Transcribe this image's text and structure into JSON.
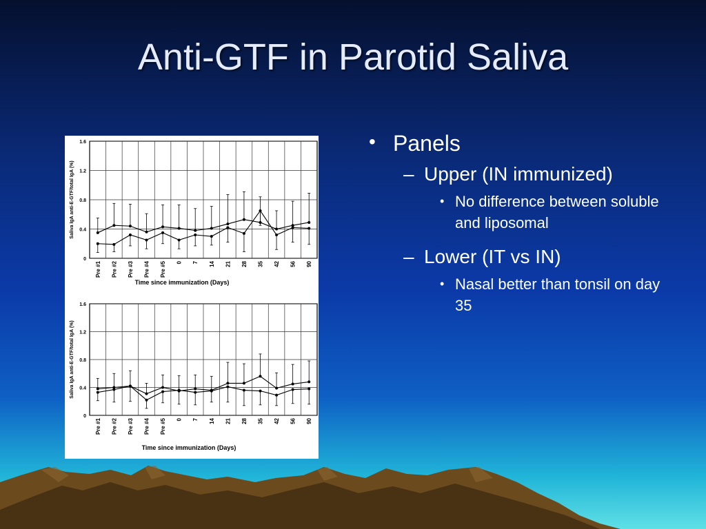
{
  "slide": {
    "title": "Anti-GTF in Parotid Saliva",
    "bullets": {
      "level1": "Panels",
      "upper": "Upper (IN immunized)",
      "upper_detail": "No difference between soluble and liposomal",
      "lower": "Lower (IT vs IN)",
      "lower_detail": "Nasal better than tonsil on day 35"
    }
  },
  "chart_data": [
    {
      "type": "line",
      "ylabel": "Saliva IgA anti-E-GTF/total IgA (%)",
      "xlabel": "Time since immunization (Days)",
      "categories": [
        "Pre #1",
        "Pre #2",
        "Pre #3",
        "Pre #4",
        "Pre #5",
        "0",
        "7",
        "14",
        "21",
        "28",
        "35",
        "42",
        "56",
        "90"
      ],
      "yticks": [
        "0",
        "0.4",
        "0.8",
        "1.2",
        "1.6"
      ],
      "ylim": [
        0,
        1.6
      ],
      "grid": true,
      "series": [
        {
          "values": [
            0.35,
            0.45,
            0.44,
            0.36,
            0.43,
            0.41,
            0.38,
            0.41,
            0.47,
            0.53,
            0.49,
            0.4,
            0.45,
            0.49
          ],
          "err": [
            0.2,
            0.3,
            0.3,
            0.25,
            0.3,
            0.32,
            0.3,
            0.3,
            0.4,
            0.38,
            0.35,
            0.25,
            0.33,
            0.4
          ]
        },
        {
          "values": [
            0.2,
            0.19,
            0.32,
            0.25,
            0.35,
            0.25,
            0.32,
            0.3,
            0.42,
            0.34,
            0.65,
            0.32,
            0.42,
            0.41
          ],
          "err": [
            0.12,
            0.1,
            0.15,
            0.12,
            0.15,
            0.12,
            0.15,
            0.12,
            0.2,
            0.25,
            0.2,
            0.2,
            0.2,
            0.22
          ]
        }
      ]
    },
    {
      "type": "line",
      "ylabel": "Saliva IgA anti-E-GTF/total IgA (%)",
      "xlabel": "Time since immunization (Days)",
      "categories": [
        "Pre #1",
        "Pre #2",
        "Pre #3",
        "Pre #4",
        "Pre #5",
        "0",
        "7",
        "14",
        "21",
        "28",
        "35",
        "42",
        "56",
        "90"
      ],
      "yticks": [
        "0",
        "0.4",
        "0.8",
        "1.2",
        "1.6"
      ],
      "ylim": [
        0,
        1.6
      ],
      "grid": true,
      "series": [
        {
          "values": [
            0.38,
            0.4,
            0.42,
            0.31,
            0.4,
            0.35,
            0.38,
            0.36,
            0.46,
            0.46,
            0.56,
            0.39,
            0.45,
            0.48
          ],
          "err": [
            0.15,
            0.2,
            0.22,
            0.15,
            0.18,
            0.22,
            0.2,
            0.2,
            0.3,
            0.28,
            0.32,
            0.22,
            0.28,
            0.3
          ]
        },
        {
          "values": [
            0.33,
            0.37,
            0.42,
            0.22,
            0.34,
            0.36,
            0.33,
            0.35,
            0.41,
            0.36,
            0.35,
            0.29,
            0.37,
            0.38
          ],
          "err": [
            0.12,
            0.18,
            0.22,
            0.12,
            0.16,
            0.2,
            0.18,
            0.16,
            0.22,
            0.22,
            0.2,
            0.15,
            0.2,
            0.22
          ]
        }
      ]
    }
  ],
  "colors": {
    "title": "#e6ecff",
    "text": "#ffffff",
    "mountain": "#6b4a1e",
    "mountain_shade": "#3d2a10"
  }
}
